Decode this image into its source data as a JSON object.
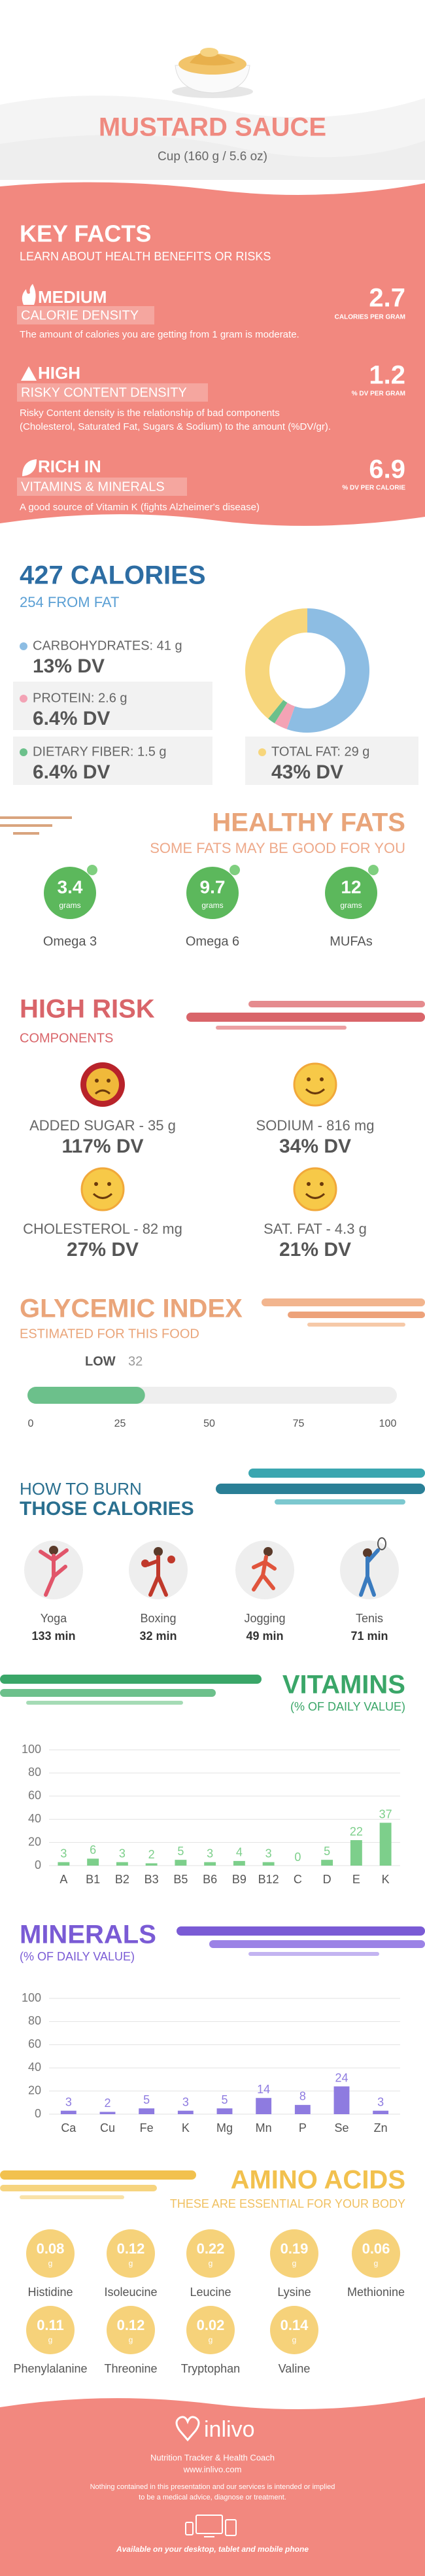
{
  "header": {
    "title": "MUSTARD SAUCE",
    "serving": "Cup (160 g / 5.6 oz)"
  },
  "key_facts": {
    "title": "KEY FACTS",
    "subtitle": "LEARN ABOUT HEALTH BENEFITS OR RISKS",
    "items": [
      {
        "level": "MEDIUM",
        "label": "CALORIE DENSITY",
        "description": [
          "The amount of calories you are getting from 1 gram is moderate."
        ],
        "value": 2.7,
        "unit": "CALORIES PER GRAM"
      },
      {
        "level": "HIGH",
        "label": "RISKY CONTENT DENSITY",
        "description": [
          "Risky Content density is the relationship of bad components",
          "(Cholesterol, Saturated Fat, Sugars & Sodium) to the amount (%DV/gr)."
        ],
        "value": 1.2,
        "unit": "% DV PER GRAM"
      },
      {
        "level": "RICH IN",
        "label": "VITAMINS & MINERALS",
        "description": [
          "A good source of Vitamin K (fights Alzheimer's disease)"
        ],
        "value": 6.9,
        "unit": "% DV PER CALORIE"
      }
    ]
  },
  "calories": {
    "title": "427 CALORIES",
    "subtitle": "254 FROM FAT"
  },
  "healthy_fats": {
    "title": "HEALTHY FATS",
    "subtitle": "SOME FATS MAY BE GOOD FOR YOU",
    "items": [
      {
        "name": "Omega 3",
        "value": 3.4,
        "unit": "grams"
      },
      {
        "name": "Omega 6",
        "value": 9.7,
        "unit": "grams"
      },
      {
        "name": "MUFAs",
        "value": 12,
        "unit": "grams"
      }
    ]
  },
  "high_risk": {
    "title": "HIGH RISK",
    "subtitle": "COMPONENTS",
    "items": [
      {
        "label": "ADDED SUGAR - 35 g",
        "dv": "117% DV"
      },
      {
        "label": "SODIUM - 816 mg",
        "dv": "34% DV"
      },
      {
        "label": "CHOLESTEROL - 82 mg",
        "dv": "27% DV"
      },
      {
        "label": "SAT. FAT - 4.3 g",
        "dv": "21% DV"
      }
    ]
  },
  "burn": {
    "title": "HOW TO BURN",
    "subtitle": "THOSE CALORIES",
    "items": [
      {
        "name": "Yoga",
        "time": "133 min"
      },
      {
        "name": "Boxing",
        "time": "32 min"
      },
      {
        "name": "Jogging",
        "time": "49 min"
      },
      {
        "name": "Tenis",
        "time": "71 min"
      }
    ]
  },
  "amino_acids": {
    "title": "AMINO ACIDS",
    "subtitle": "THESE ARE ESSENTIAL FOR YOUR BODY",
    "items": [
      {
        "name": "Histidine",
        "value": 0.08,
        "unit": "g"
      },
      {
        "name": "Isoleucine",
        "value": 0.12,
        "unit": "g"
      },
      {
        "name": "Leucine",
        "value": 0.22,
        "unit": "g"
      },
      {
        "name": "Lysine",
        "value": 0.19,
        "unit": "g"
      },
      {
        "name": "Methionine",
        "value": 0.06,
        "unit": "g"
      },
      {
        "name": "Phenylalanine",
        "value": 0.11,
        "unit": "g"
      },
      {
        "name": "Threonine",
        "value": 0.12,
        "unit": "g"
      },
      {
        "name": "Tryptophan",
        "value": 0.02,
        "unit": "g"
      },
      {
        "name": "Valine",
        "value": 0.14,
        "unit": "g"
      }
    ]
  },
  "footer": {
    "brand": "inlivo",
    "tagline": "Nutrition Tracker & Health Coach",
    "url": "www.inlivo.com",
    "disclaimer": [
      "Nothing contained in this presentation and our services is intended or implied",
      "to be a medical advice, diagnose or treatment."
    ],
    "availability": "Available on your desktop, tablet and mobile phone"
  },
  "chart_data": [
    {
      "type": "donut",
      "categories": [
        "CARBOHYDRATES: 41 g",
        "PROTEIN: 2.6 g",
        "DIETARY FIBER: 1.5 g",
        "TOTAL FAT: 29 g"
      ],
      "values": [
        41,
        2.6,
        1.5,
        29
      ],
      "dv_labels": [
        "13% DV",
        "6.4% DV",
        "6.4% DV",
        "43% DV"
      ],
      "colors": [
        "#8dbde3",
        "#f3a3b5",
        "#6cc08b",
        "#f7d67c"
      ]
    },
    {
      "type": "progress",
      "title": "GLYCEMIC INDEX",
      "subtitle": "ESTIMATED FOR THIS FOOD",
      "category": "LOW",
      "value": 32,
      "xlim": [
        0,
        100
      ],
      "xticks": [
        0,
        25,
        50,
        75,
        100
      ],
      "color": "#6cc08b"
    },
    {
      "type": "bar",
      "title": "VITAMINS",
      "subtitle": "(% OF DAILY VALUE)",
      "categories": [
        "A",
        "B1",
        "B2",
        "B3",
        "B5",
        "B6",
        "B9",
        "B12",
        "C",
        "D",
        "E",
        "K"
      ],
      "values": [
        3,
        6,
        3,
        2,
        5,
        3,
        4,
        3,
        0,
        5,
        22,
        37
      ],
      "ylim": [
        0,
        100
      ],
      "yticks": [
        0,
        20,
        40,
        60,
        80,
        100
      ],
      "color": "#7dcf8b",
      "grid": true
    },
    {
      "type": "bar",
      "title": "MINERALS",
      "subtitle": "(% OF DAILY VALUE)",
      "categories": [
        "Ca",
        "Cu",
        "Fe",
        "K",
        "Mg",
        "Mn",
        "P",
        "Se",
        "Zn"
      ],
      "values": [
        3,
        2,
        5,
        3,
        5,
        14,
        8,
        24,
        3
      ],
      "ylim": [
        0,
        100
      ],
      "yticks": [
        0,
        20,
        40,
        60,
        80,
        100
      ],
      "color": "#8e7be0",
      "grid": true
    }
  ]
}
